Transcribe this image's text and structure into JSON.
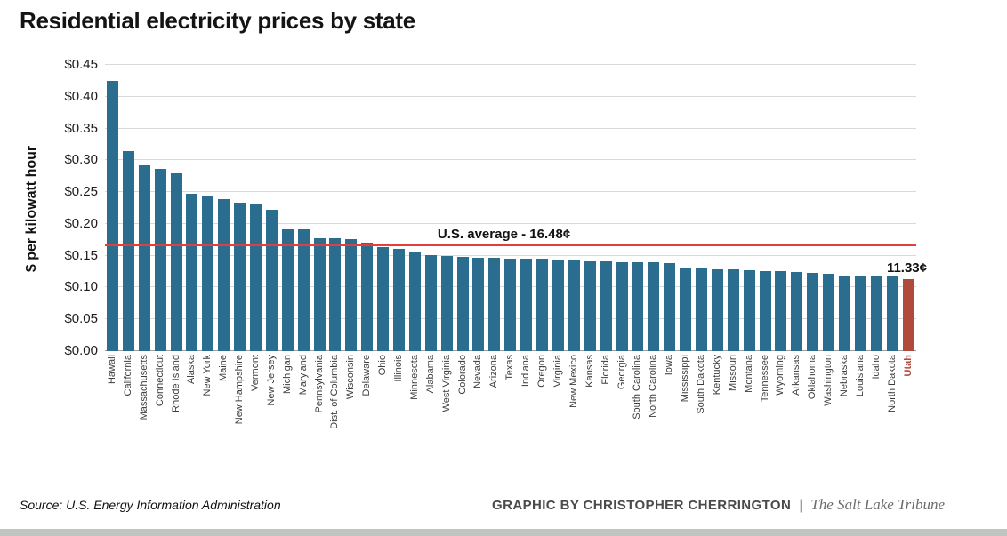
{
  "title": "Residential electricity prices by state",
  "chart_data": {
    "type": "bar",
    "title": "Residential electricity prices by state",
    "xlabel": "",
    "ylabel": "$ per kilowatt hour",
    "ylim": [
      0,
      0.45
    ],
    "ytick_step": 0.05,
    "ytick_labels": [
      "$0.00",
      "$0.05",
      "$0.10",
      "$0.15",
      "$0.20",
      "$0.25",
      "$0.30",
      "$0.35",
      "$0.40",
      "$0.45"
    ],
    "grid": "horizontal",
    "bar_color": "#2b6d8e",
    "categories": [
      "Hawaii",
      "California",
      "Massachusetts",
      "Connecticut",
      "Rhode Island",
      "Alaska",
      "New York",
      "Maine",
      "New Hampshire",
      "Vermont",
      "New Jersey",
      "Michigan",
      "Maryland",
      "Pennsylvania",
      "Dist. of Columbia",
      "Wisconsin",
      "Delaware",
      "Ohio",
      "Illinois",
      "Minnesota",
      "Alabama",
      "West Virginia",
      "Colorado",
      "Nevada",
      "Arizona",
      "Texas",
      "Indiana",
      "Oregon",
      "Virginia",
      "New Mexico",
      "Kansas",
      "Florida",
      "Georgia",
      "South Carolina",
      "North Carolina",
      "Iowa",
      "Mississippi",
      "South Dakota",
      "Kentucky",
      "Missouri",
      "Montana",
      "Tennessee",
      "Wyoming",
      "Arkansas",
      "Oklahoma",
      "Washington",
      "Nebraska",
      "Louisiana",
      "Idaho",
      "North Dakota",
      "Utah"
    ],
    "values": [
      0.425,
      0.315,
      0.292,
      0.286,
      0.28,
      0.247,
      0.243,
      0.239,
      0.233,
      0.23,
      0.222,
      0.192,
      0.191,
      0.178,
      0.177,
      0.176,
      0.171,
      0.164,
      0.161,
      0.157,
      0.151,
      0.149,
      0.148,
      0.147,
      0.147,
      0.146,
      0.146,
      0.146,
      0.144,
      0.143,
      0.141,
      0.141,
      0.14,
      0.14,
      0.14,
      0.139,
      0.132,
      0.13,
      0.129,
      0.128,
      0.127,
      0.126,
      0.126,
      0.125,
      0.123,
      0.121,
      0.119,
      0.119,
      0.118,
      0.117,
      0.1133
    ],
    "highlight": {
      "category": "Utah",
      "color": "#b04a3c",
      "label": "11.33¢"
    },
    "average_line": {
      "value": 0.1648,
      "label": "U.S. average - 16.48¢",
      "color": "#e23e3c"
    },
    "legend": "none"
  },
  "footer": {
    "source": "Source: U.S. Energy Information Administration",
    "credit": "GRAPHIC BY CHRISTOPHER CHERRINGTON",
    "divider": "|",
    "publication": "The Salt Lake Tribune"
  }
}
